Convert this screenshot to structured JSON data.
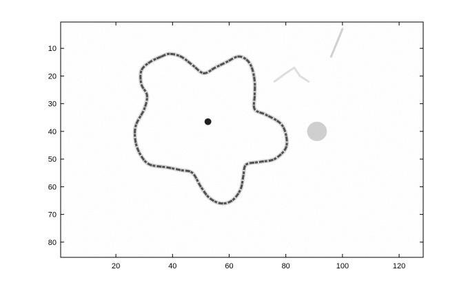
{
  "chart_data": {
    "type": "heatmap",
    "title": "",
    "xlabel": "",
    "ylabel": "",
    "colormap": "gray",
    "xlim": [
      0.5,
      128.5
    ],
    "ylim": [
      0.5,
      85.5
    ],
    "y_reversed": true,
    "xticks": [
      20,
      40,
      60,
      80,
      100,
      120
    ],
    "yticks": [
      10,
      20,
      30,
      40,
      50,
      60,
      70,
      80
    ],
    "image_size": [
      128,
      85
    ],
    "contour": {
      "name": "flower-outline",
      "color": "#505050",
      "points": [
        [
          36,
          13
        ],
        [
          39,
          12
        ],
        [
          43,
          13
        ],
        [
          47,
          16
        ],
        [
          51,
          19
        ],
        [
          55,
          17
        ],
        [
          59,
          15
        ],
        [
          63,
          13
        ],
        [
          66,
          14
        ],
        [
          68,
          17
        ],
        [
          69,
          22
        ],
        [
          69,
          27
        ],
        [
          69,
          32
        ],
        [
          73,
          34
        ],
        [
          78,
          37
        ],
        [
          80,
          41
        ],
        [
          80,
          46
        ],
        [
          76,
          50
        ],
        [
          71,
          51
        ],
        [
          66,
          52
        ],
        [
          65,
          56
        ],
        [
          64,
          61
        ],
        [
          61,
          65
        ],
        [
          57,
          66
        ],
        [
          53,
          64
        ],
        [
          50,
          60
        ],
        [
          47,
          55
        ],
        [
          43,
          54
        ],
        [
          38,
          53
        ],
        [
          32,
          52
        ],
        [
          29,
          49
        ],
        [
          27,
          44
        ],
        [
          27,
          38
        ],
        [
          30,
          32
        ],
        [
          31,
          27
        ],
        [
          29,
          23
        ],
        [
          29,
          18
        ],
        [
          32,
          15
        ]
      ]
    },
    "spots": [
      {
        "name": "center-spot",
        "x": 52.5,
        "y": 36.5,
        "radius": 1.2,
        "color": "#202020"
      },
      {
        "name": "faint-blob",
        "x": 91,
        "y": 40,
        "radius": 3.5,
        "color": "#cfcfcf"
      }
    ],
    "streaks": [
      {
        "name": "faint-streak-upper",
        "points": [
          [
            100,
            3
          ],
          [
            98,
            8
          ],
          [
            96,
            13
          ]
        ],
        "color": "#d0d0d0"
      },
      {
        "name": "faint-streak-mid",
        "points": [
          [
            76,
            22
          ],
          [
            80,
            19
          ],
          [
            83,
            17
          ],
          [
            85,
            20
          ],
          [
            88,
            22
          ]
        ],
        "color": "#dedede"
      }
    ]
  }
}
